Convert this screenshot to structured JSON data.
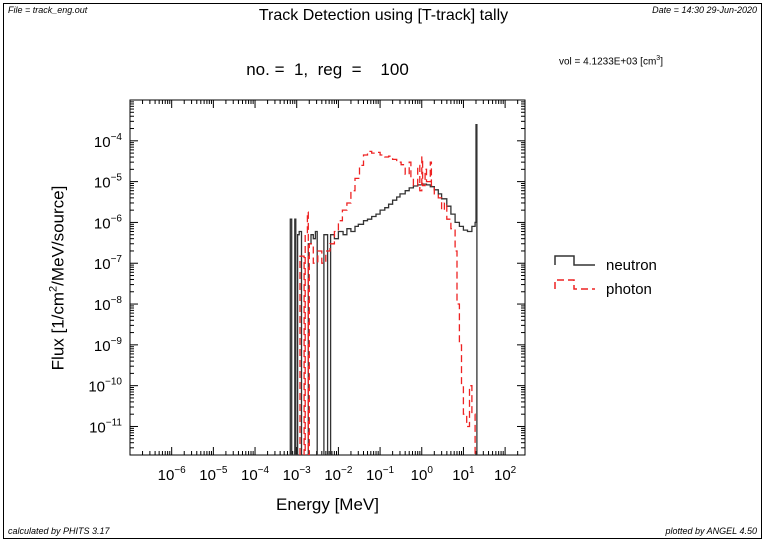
{
  "header": {
    "file": "File = track_eng.out",
    "date": "Date = 14:30 29-Jun-2020"
  },
  "footer": {
    "calculated_by": "calculated by PHITS 3.17",
    "plotted_by": "plotted by ANGEL 4.50"
  },
  "chart_data": {
    "type": "line",
    "step": true,
    "title": "Track Detection using [T-track] tally",
    "subtitle": "no. =  1,  reg  =    100",
    "volume": {
      "prefix": "vol  =   4.1233E+03 [cm",
      "exponent": "3",
      "suffix": "]"
    },
    "xlabel": "Energy [MeV]",
    "ylabel": {
      "prefix": "Flux [1/cm",
      "exponent": "2",
      "suffix": "/MeV/source]"
    },
    "xscale": "log",
    "yscale": "log",
    "xlim": [
      1e-07,
      300
    ],
    "ylim": [
      2e-12,
      0.001
    ],
    "xticks": [
      {
        "base": "10",
        "exp": "−6",
        "value": 1e-06
      },
      {
        "base": "10",
        "exp": "−5",
        "value": 1e-05
      },
      {
        "base": "10",
        "exp": "−4",
        "value": 0.0001
      },
      {
        "base": "10",
        "exp": "−3",
        "value": 0.001
      },
      {
        "base": "10",
        "exp": "−2",
        "value": 0.01
      },
      {
        "base": "10",
        "exp": "−1",
        "value": 0.1
      },
      {
        "base": "10",
        "exp": "0",
        "value": 1
      },
      {
        "base": "10",
        "exp": "1",
        "value": 10
      },
      {
        "base": "10",
        "exp": "2",
        "value": 100
      }
    ],
    "yticks": [
      {
        "base": "10",
        "exp": "−4",
        "value": 0.0001
      },
      {
        "base": "10",
        "exp": "−5",
        "value": 1e-05
      },
      {
        "base": "10",
        "exp": "−6",
        "value": 1e-06
      },
      {
        "base": "10",
        "exp": "−7",
        "value": 1e-07
      },
      {
        "base": "10",
        "exp": "−8",
        "value": 1e-08
      },
      {
        "base": "10",
        "exp": "−9",
        "value": 1e-09
      },
      {
        "base": "10",
        "exp": "−10",
        "value": 1e-10
      },
      {
        "base": "10",
        "exp": "−11",
        "value": 1e-11
      }
    ],
    "legend_position": "right",
    "series": [
      {
        "name": "neutron",
        "color": "#333333",
        "dash": "solid",
        "points": [
          [
            0.0007,
            2e-12
          ],
          [
            0.0007,
            1.2e-06
          ],
          [
            0.00076,
            1.2e-06
          ],
          [
            0.00076,
            2e-12
          ],
          [
            0.0009,
            2e-12
          ],
          [
            0.0009,
            1.2e-06
          ],
          [
            0.00095,
            1.2e-06
          ],
          [
            0.00095,
            2e-12
          ],
          [
            0.00105,
            2e-12
          ],
          [
            0.00105,
            5e-07
          ],
          [
            0.00115,
            5e-07
          ],
          [
            0.00115,
            6e-07
          ],
          [
            0.0013,
            6e-07
          ],
          [
            0.0013,
            2e-12
          ],
          [
            0.0019,
            2e-12
          ],
          [
            0.0019,
            3e-07
          ],
          [
            0.0022,
            3e-07
          ],
          [
            0.0022,
            5e-07
          ],
          [
            0.0025,
            5e-07
          ],
          [
            0.0025,
            4e-07
          ],
          [
            0.0028,
            4e-07
          ],
          [
            0.0028,
            6e-07
          ],
          [
            0.0031,
            6e-07
          ],
          [
            0.0031,
            2e-12
          ],
          [
            0.0045,
            2e-12
          ],
          [
            0.0045,
            5e-07
          ],
          [
            0.0055,
            5e-07
          ],
          [
            0.0055,
            2e-12
          ],
          [
            0.0065,
            2e-12
          ],
          [
            0.0065,
            5e-07
          ],
          [
            0.008,
            5e-07
          ],
          [
            0.008,
            4e-07
          ],
          [
            0.01,
            4e-07
          ],
          [
            0.01,
            6e-07
          ],
          [
            0.013,
            6e-07
          ],
          [
            0.013,
            5e-07
          ],
          [
            0.016,
            5e-07
          ],
          [
            0.016,
            7e-07
          ],
          [
            0.02,
            7e-07
          ],
          [
            0.02,
            6e-07
          ],
          [
            0.025,
            6e-07
          ],
          [
            0.025,
            8e-07
          ],
          [
            0.03,
            8e-07
          ],
          [
            0.03,
            9e-07
          ],
          [
            0.04,
            9e-07
          ],
          [
            0.04,
            1.1e-06
          ],
          [
            0.05,
            1.1e-06
          ],
          [
            0.05,
            1.2e-06
          ],
          [
            0.063,
            1.2e-06
          ],
          [
            0.063,
            1.4e-06
          ],
          [
            0.08,
            1.4e-06
          ],
          [
            0.08,
            1.6e-06
          ],
          [
            0.1,
            1.6e-06
          ],
          [
            0.1,
            2e-06
          ],
          [
            0.13,
            2e-06
          ],
          [
            0.13,
            2.3e-06
          ],
          [
            0.16,
            2.3e-06
          ],
          [
            0.16,
            2.8e-06
          ],
          [
            0.2,
            2.8e-06
          ],
          [
            0.2,
            3.5e-06
          ],
          [
            0.25,
            3.5e-06
          ],
          [
            0.25,
            4.2e-06
          ],
          [
            0.3,
            4.2e-06
          ],
          [
            0.3,
            5e-06
          ],
          [
            0.4,
            5e-06
          ],
          [
            0.4,
            6e-06
          ],
          [
            0.5,
            6e-06
          ],
          [
            0.5,
            7e-06
          ],
          [
            0.63,
            7e-06
          ],
          [
            0.63,
            7.8e-06
          ],
          [
            0.8,
            7.8e-06
          ],
          [
            0.8,
            8.3e-06
          ],
          [
            1.0,
            8.3e-06
          ],
          [
            1.0,
            8.7e-06
          ],
          [
            1.3,
            8.7e-06
          ],
          [
            1.3,
            8.3e-06
          ],
          [
            1.6,
            8.3e-06
          ],
          [
            1.6,
            7.5e-06
          ],
          [
            2.0,
            7.5e-06
          ],
          [
            2.0,
            6.3e-06
          ],
          [
            2.5,
            6.3e-06
          ],
          [
            2.5,
            5e-06
          ],
          [
            3.0,
            5e-06
          ],
          [
            3.0,
            3.8e-06
          ],
          [
            4.0,
            3.8e-06
          ],
          [
            4.0,
            2.5e-06
          ],
          [
            5.0,
            2.5e-06
          ],
          [
            5.0,
            1.6e-06
          ],
          [
            6.3,
            1.6e-06
          ],
          [
            6.3,
            1e-06
          ],
          [
            8.0,
            1e-06
          ],
          [
            8.0,
            8e-07
          ],
          [
            10,
            8e-07
          ],
          [
            10,
            6.5e-07
          ],
          [
            12.5,
            6.5e-07
          ],
          [
            12.5,
            6e-07
          ],
          [
            16,
            6e-07
          ],
          [
            16,
            8e-07
          ],
          [
            19,
            8e-07
          ],
          [
            19,
            1e-06
          ],
          [
            20,
            1e-06
          ],
          [
            20,
            0.00025
          ],
          [
            21,
            0.00025
          ],
          [
            21,
            2e-12
          ]
        ]
      },
      {
        "name": "photon",
        "color": "#ee2222",
        "dash": "dashed",
        "points": [
          [
            0.0012,
            2e-12
          ],
          [
            0.0012,
            1.5e-07
          ],
          [
            0.0015,
            1.5e-07
          ],
          [
            0.0015,
            2e-12
          ],
          [
            0.0016,
            2e-12
          ],
          [
            0.0016,
            5e-07
          ],
          [
            0.0018,
            5e-07
          ],
          [
            0.0018,
            1.8e-06
          ],
          [
            0.0019,
            1.8e-06
          ],
          [
            0.0019,
            2e-12
          ],
          [
            0.002,
            2e-12
          ],
          [
            0.002,
            3e-07
          ],
          [
            0.0025,
            3e-07
          ],
          [
            0.0025,
            1e-07
          ],
          [
            0.0032,
            1e-07
          ],
          [
            0.0032,
            2e-07
          ],
          [
            0.004,
            2e-07
          ],
          [
            0.004,
            1e-07
          ],
          [
            0.005,
            1e-07
          ],
          [
            0.005,
            2e-07
          ],
          [
            0.0063,
            2e-07
          ],
          [
            0.0063,
            3e-07
          ],
          [
            0.008,
            3e-07
          ],
          [
            0.008,
            6e-07
          ],
          [
            0.01,
            6e-07
          ],
          [
            0.01,
            1.1e-06
          ],
          [
            0.0125,
            1.1e-06
          ],
          [
            0.0125,
            2e-06
          ],
          [
            0.016,
            2e-06
          ],
          [
            0.016,
            3e-06
          ],
          [
            0.02,
            3e-06
          ],
          [
            0.02,
            6e-06
          ],
          [
            0.025,
            6e-06
          ],
          [
            0.025,
            1.2e-05
          ],
          [
            0.032,
            1.2e-05
          ],
          [
            0.032,
            2.5e-05
          ],
          [
            0.04,
            2.5e-05
          ],
          [
            0.04,
            4.5e-05
          ],
          [
            0.05,
            4.5e-05
          ],
          [
            0.05,
            5.5e-05
          ],
          [
            0.063,
            5.5e-05
          ],
          [
            0.063,
            5e-05
          ],
          [
            0.08,
            5e-05
          ],
          [
            0.08,
            5.2e-05
          ],
          [
            0.1,
            5.2e-05
          ],
          [
            0.1,
            4.5e-05
          ],
          [
            0.13,
            4.5e-05
          ],
          [
            0.13,
            4e-05
          ],
          [
            0.16,
            4e-05
          ],
          [
            0.16,
            4.2e-05
          ],
          [
            0.2,
            4.2e-05
          ],
          [
            0.2,
            3.5e-05
          ],
          [
            0.25,
            3.5e-05
          ],
          [
            0.25,
            3e-05
          ],
          [
            0.32,
            3e-05
          ],
          [
            0.32,
            2.6e-05
          ],
          [
            0.4,
            2.6e-05
          ],
          [
            0.4,
            1.5e-05
          ],
          [
            0.5,
            1.5e-05
          ],
          [
            0.5,
            3e-05
          ],
          [
            0.55,
            3e-05
          ],
          [
            0.55,
            1.2e-05
          ],
          [
            0.63,
            1.2e-05
          ],
          [
            0.63,
            8e-06
          ],
          [
            0.8,
            8e-06
          ],
          [
            0.8,
            2.5e-05
          ],
          [
            0.9,
            2.5e-05
          ],
          [
            0.9,
            6e-06
          ],
          [
            1.0,
            6e-06
          ],
          [
            1.0,
            4e-05
          ],
          [
            1.05,
            4e-05
          ],
          [
            1.05,
            8e-06
          ],
          [
            1.2,
            8e-06
          ],
          [
            1.2,
            2e-05
          ],
          [
            1.3,
            2e-05
          ],
          [
            1.3,
            1e-05
          ],
          [
            1.6,
            1e-05
          ],
          [
            1.6,
            3e-05
          ],
          [
            1.7,
            3e-05
          ],
          [
            1.7,
            8e-06
          ],
          [
            2.0,
            8e-06
          ],
          [
            2.0,
            5e-06
          ],
          [
            2.5,
            5e-06
          ],
          [
            2.5,
            4e-06
          ],
          [
            3.0,
            4e-06
          ],
          [
            3.0,
            2e-06
          ],
          [
            3.5,
            2e-06
          ],
          [
            3.5,
            3e-06
          ],
          [
            4.0,
            3e-06
          ],
          [
            4.0,
            1.2e-06
          ],
          [
            5.0,
            1.2e-06
          ],
          [
            5.0,
            7e-07
          ],
          [
            6.3,
            7e-07
          ],
          [
            6.3,
            2e-07
          ],
          [
            7.0,
            2e-07
          ],
          [
            7.0,
            1e-08
          ],
          [
            8.0,
            1e-08
          ],
          [
            8.0,
            1e-09
          ],
          [
            9.0,
            1e-09
          ],
          [
            9.0,
            1e-10
          ],
          [
            10,
            1e-10
          ],
          [
            10,
            2e-11
          ],
          [
            12,
            2e-11
          ],
          [
            12,
            1e-11
          ],
          [
            14,
            1e-11
          ],
          [
            14,
            1e-10
          ],
          [
            16,
            1e-10
          ],
          [
            16,
            2e-11
          ],
          [
            19,
            2e-11
          ],
          [
            19,
            2e-12
          ]
        ]
      }
    ]
  }
}
